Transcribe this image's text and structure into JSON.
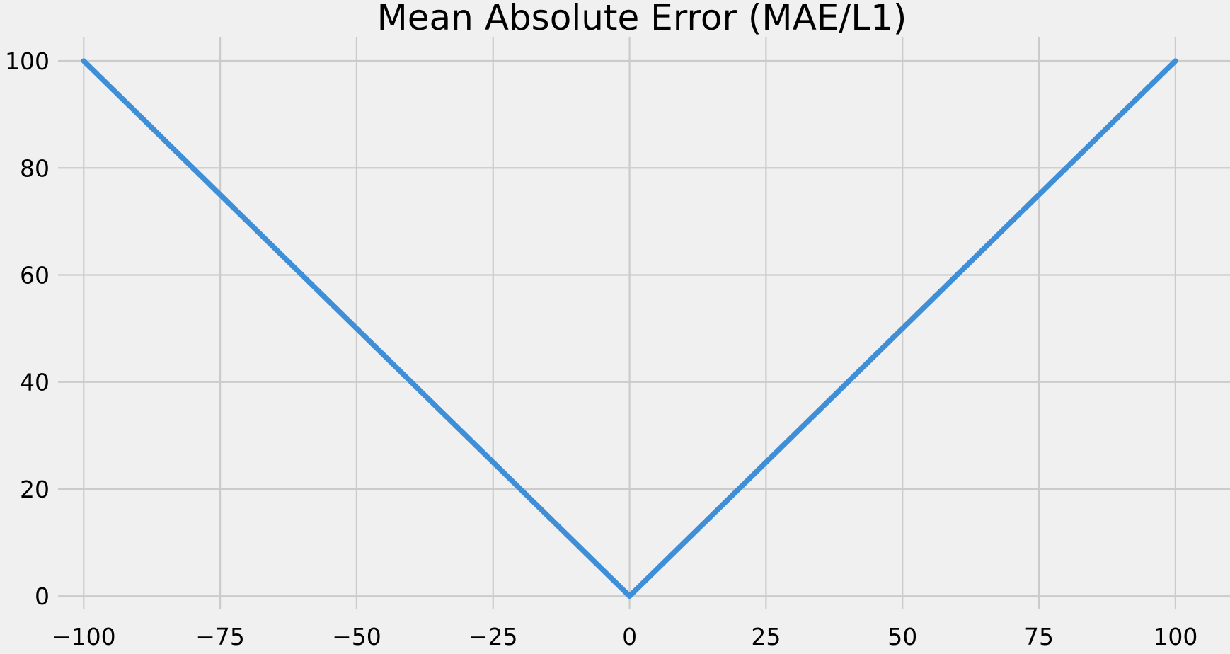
{
  "chart_data": {
    "type": "line",
    "title": "Mean Absolute Error (MAE/L1)",
    "xlabel": "",
    "ylabel": "",
    "xlim": [
      -109.5,
      110
    ],
    "ylim": [
      -5,
      104.5
    ],
    "xticks": [
      -100,
      -75,
      -50,
      -25,
      0,
      25,
      50,
      75,
      100
    ],
    "xtick_labels": [
      "−100",
      "−75",
      "−50",
      "−25",
      "0",
      "25",
      "50",
      "75",
      "100"
    ],
    "yticks": [
      0,
      20,
      40,
      60,
      80,
      100
    ],
    "ytick_labels": [
      "0",
      "20",
      "40",
      "60",
      "80",
      "100"
    ],
    "grid": true,
    "legend": "none",
    "background_color": "#f0f0f0",
    "grid_color": "#cbcbcb",
    "series": [
      {
        "color": "#3f8fd8",
        "x": [
          -100,
          0,
          100
        ],
        "y": [
          100,
          0,
          100
        ]
      }
    ]
  }
}
